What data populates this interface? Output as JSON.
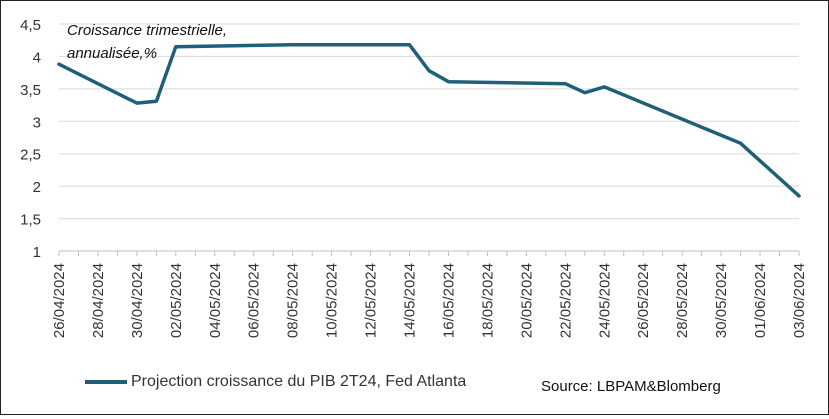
{
  "chart_data": {
    "type": "line",
    "annotation_lines": [
      "Croissance trimestrielle,",
      "annualisée,%"
    ],
    "yticks": [
      "4,5",
      "4",
      "3,5",
      "3",
      "2,5",
      "2",
      "1,5",
      "1"
    ],
    "ylim": [
      1,
      4.5
    ],
    "xlim": [
      "2024-04-26",
      "2024-06-03"
    ],
    "xticks": [
      "26/04/2024",
      "28/04/2024",
      "30/04/2024",
      "02/05/2024",
      "04/05/2024",
      "06/05/2024",
      "08/05/2024",
      "10/05/2024",
      "12/05/2024",
      "14/05/2024",
      "16/05/2024",
      "18/05/2024",
      "20/05/2024",
      "22/05/2024",
      "24/05/2024",
      "26/05/2024",
      "28/05/2024",
      "30/05/2024",
      "01/06/2024",
      "03/06/2024"
    ],
    "series": [
      {
        "name": "Projection croissance du PIB 2T24, Fed Atlanta",
        "color": "#1f5f7a",
        "points": [
          {
            "x": "2024-04-26",
            "y": 3.88
          },
          {
            "x": "2024-04-30",
            "y": 3.28
          },
          {
            "x": "2024-05-01",
            "y": 3.31
          },
          {
            "x": "2024-05-02",
            "y": 4.15
          },
          {
            "x": "2024-05-08",
            "y": 4.18
          },
          {
            "x": "2024-05-14",
            "y": 4.18
          },
          {
            "x": "2024-05-15",
            "y": 3.78
          },
          {
            "x": "2024-05-16",
            "y": 3.61
          },
          {
            "x": "2024-05-22",
            "y": 3.58
          },
          {
            "x": "2024-05-23",
            "y": 3.44
          },
          {
            "x": "2024-05-24",
            "y": 3.53
          },
          {
            "x": "2024-05-31",
            "y": 2.66
          },
          {
            "x": "2024-06-03",
            "y": 1.85
          }
        ]
      }
    ],
    "grid": true,
    "legend_position": "bottom-left"
  },
  "source_text": "Source: LBPAM&Blomberg"
}
